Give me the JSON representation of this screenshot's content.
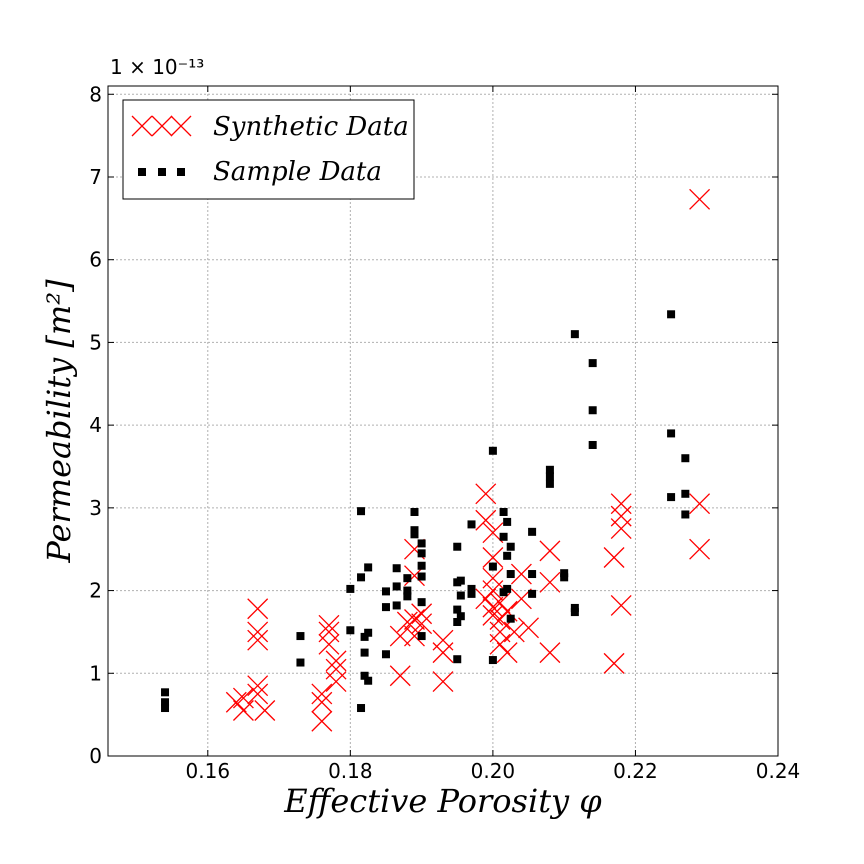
{
  "chart_data": {
    "type": "scatter",
    "title": "",
    "xlabel": "Effective Porosity φ",
    "ylabel": "Permeability [m²]",
    "y_offset_label": "1 × 10⁻¹³",
    "xlim": [
      0.146,
      0.24
    ],
    "ylim": [
      0,
      8.1
    ],
    "xticks": [
      0.16,
      0.18,
      0.2,
      0.22,
      0.24
    ],
    "xtick_labels": [
      "0.16",
      "0.18",
      "0.20",
      "0.22",
      "0.24"
    ],
    "yticks": [
      0,
      1,
      2,
      3,
      4,
      5,
      6,
      7,
      8
    ],
    "ytick_labels": [
      "0",
      "1",
      "2",
      "3",
      "4",
      "5",
      "6",
      "7",
      "8"
    ],
    "grid": true,
    "legend_position": "top-left",
    "series": [
      {
        "name": "Synthetic Data",
        "marker": "x",
        "color": "#ff0000",
        "points": [
          [
            0.164,
            0.65
          ],
          [
            0.165,
            0.55
          ],
          [
            0.165,
            0.7
          ],
          [
            0.167,
            0.85
          ],
          [
            0.167,
            0.75
          ],
          [
            0.167,
            1.4
          ],
          [
            0.167,
            1.5
          ],
          [
            0.167,
            1.78
          ],
          [
            0.168,
            0.55
          ],
          [
            0.176,
            0.42
          ],
          [
            0.176,
            0.65
          ],
          [
            0.176,
            0.75
          ],
          [
            0.177,
            1.35
          ],
          [
            0.177,
            1.5
          ],
          [
            0.177,
            1.58
          ],
          [
            0.178,
            0.9
          ],
          [
            0.178,
            1.05
          ],
          [
            0.178,
            1.15
          ],
          [
            0.187,
            0.97
          ],
          [
            0.187,
            1.45
          ],
          [
            0.188,
            1.62
          ],
          [
            0.189,
            1.45
          ],
          [
            0.189,
            1.65
          ],
          [
            0.189,
            2.18
          ],
          [
            0.189,
            2.5
          ],
          [
            0.19,
            1.72
          ],
          [
            0.19,
            1.6
          ],
          [
            0.193,
            0.9
          ],
          [
            0.193,
            1.25
          ],
          [
            0.193,
            1.4
          ],
          [
            0.199,
            3.17
          ],
          [
            0.199,
            2.85
          ],
          [
            0.199,
            1.9
          ],
          [
            0.2,
            2.0
          ],
          [
            0.2,
            2.15
          ],
          [
            0.2,
            2.4
          ],
          [
            0.2,
            2.7
          ],
          [
            0.2,
            1.7
          ],
          [
            0.2,
            1.8
          ],
          [
            0.201,
            1.65
          ],
          [
            0.201,
            1.85
          ],
          [
            0.201,
            1.5
          ],
          [
            0.201,
            1.35
          ],
          [
            0.202,
            1.25
          ],
          [
            0.202,
            1.75
          ],
          [
            0.203,
            1.5
          ],
          [
            0.204,
            1.9
          ],
          [
            0.204,
            2.2
          ],
          [
            0.205,
            1.55
          ],
          [
            0.208,
            2.48
          ],
          [
            0.208,
            2.1
          ],
          [
            0.208,
            1.25
          ],
          [
            0.217,
            2.4
          ],
          [
            0.217,
            1.12
          ],
          [
            0.218,
            2.75
          ],
          [
            0.218,
            2.9
          ],
          [
            0.218,
            3.05
          ],
          [
            0.218,
            1.82
          ],
          [
            0.229,
            6.73
          ],
          [
            0.229,
            3.05
          ],
          [
            0.229,
            2.5
          ]
        ]
      },
      {
        "name": "Sample Data",
        "marker": "s",
        "color": "#000000",
        "points": [
          [
            0.154,
            0.77
          ],
          [
            0.154,
            0.65
          ],
          [
            0.154,
            0.58
          ],
          [
            0.173,
            1.45
          ],
          [
            0.173,
            1.13
          ],
          [
            0.18,
            2.02
          ],
          [
            0.18,
            1.52
          ],
          [
            0.1815,
            2.96
          ],
          [
            0.1815,
            2.16
          ],
          [
            0.1815,
            0.58
          ],
          [
            0.182,
            1.44
          ],
          [
            0.182,
            1.25
          ],
          [
            0.182,
            0.97
          ],
          [
            0.1825,
            2.28
          ],
          [
            0.1825,
            1.49
          ],
          [
            0.1825,
            0.91
          ],
          [
            0.185,
            1.99
          ],
          [
            0.185,
            1.8
          ],
          [
            0.185,
            1.23
          ],
          [
            0.1865,
            2.27
          ],
          [
            0.1865,
            2.05
          ],
          [
            0.1865,
            1.82
          ],
          [
            0.188,
            2.15
          ],
          [
            0.188,
            2.0
          ],
          [
            0.188,
            1.93
          ],
          [
            0.189,
            2.95
          ],
          [
            0.189,
            2.73
          ],
          [
            0.189,
            2.68
          ],
          [
            0.19,
            2.57
          ],
          [
            0.19,
            2.45
          ],
          [
            0.19,
            2.3
          ],
          [
            0.19,
            2.17
          ],
          [
            0.19,
            1.86
          ],
          [
            0.19,
            1.45
          ],
          [
            0.195,
            2.53
          ],
          [
            0.195,
            2.1
          ],
          [
            0.195,
            1.77
          ],
          [
            0.195,
            1.62
          ],
          [
            0.195,
            1.17
          ],
          [
            0.1955,
            2.12
          ],
          [
            0.1955,
            1.94
          ],
          [
            0.1955,
            1.69
          ],
          [
            0.197,
            2.8
          ],
          [
            0.197,
            2.02
          ],
          [
            0.197,
            1.96
          ],
          [
            0.2,
            3.69
          ],
          [
            0.2,
            2.29
          ],
          [
            0.2,
            1.16
          ],
          [
            0.2015,
            2.95
          ],
          [
            0.2015,
            2.65
          ],
          [
            0.2015,
            1.98
          ],
          [
            0.202,
            2.83
          ],
          [
            0.202,
            2.42
          ],
          [
            0.202,
            2.02
          ],
          [
            0.2025,
            2.53
          ],
          [
            0.2025,
            2.2
          ],
          [
            0.2025,
            1.66
          ],
          [
            0.2055,
            2.71
          ],
          [
            0.2055,
            2.2
          ],
          [
            0.2055,
            1.96
          ],
          [
            0.208,
            3.46
          ],
          [
            0.208,
            3.38
          ],
          [
            0.208,
            3.29
          ],
          [
            0.21,
            2.21
          ],
          [
            0.21,
            2.16
          ],
          [
            0.2115,
            5.1
          ],
          [
            0.2115,
            1.79
          ],
          [
            0.2115,
            1.74
          ],
          [
            0.214,
            4.75
          ],
          [
            0.214,
            4.18
          ],
          [
            0.214,
            3.76
          ],
          [
            0.225,
            5.34
          ],
          [
            0.225,
            3.9
          ],
          [
            0.225,
            3.13
          ],
          [
            0.227,
            3.6
          ],
          [
            0.227,
            3.17
          ],
          [
            0.227,
            2.92
          ]
        ]
      }
    ]
  }
}
